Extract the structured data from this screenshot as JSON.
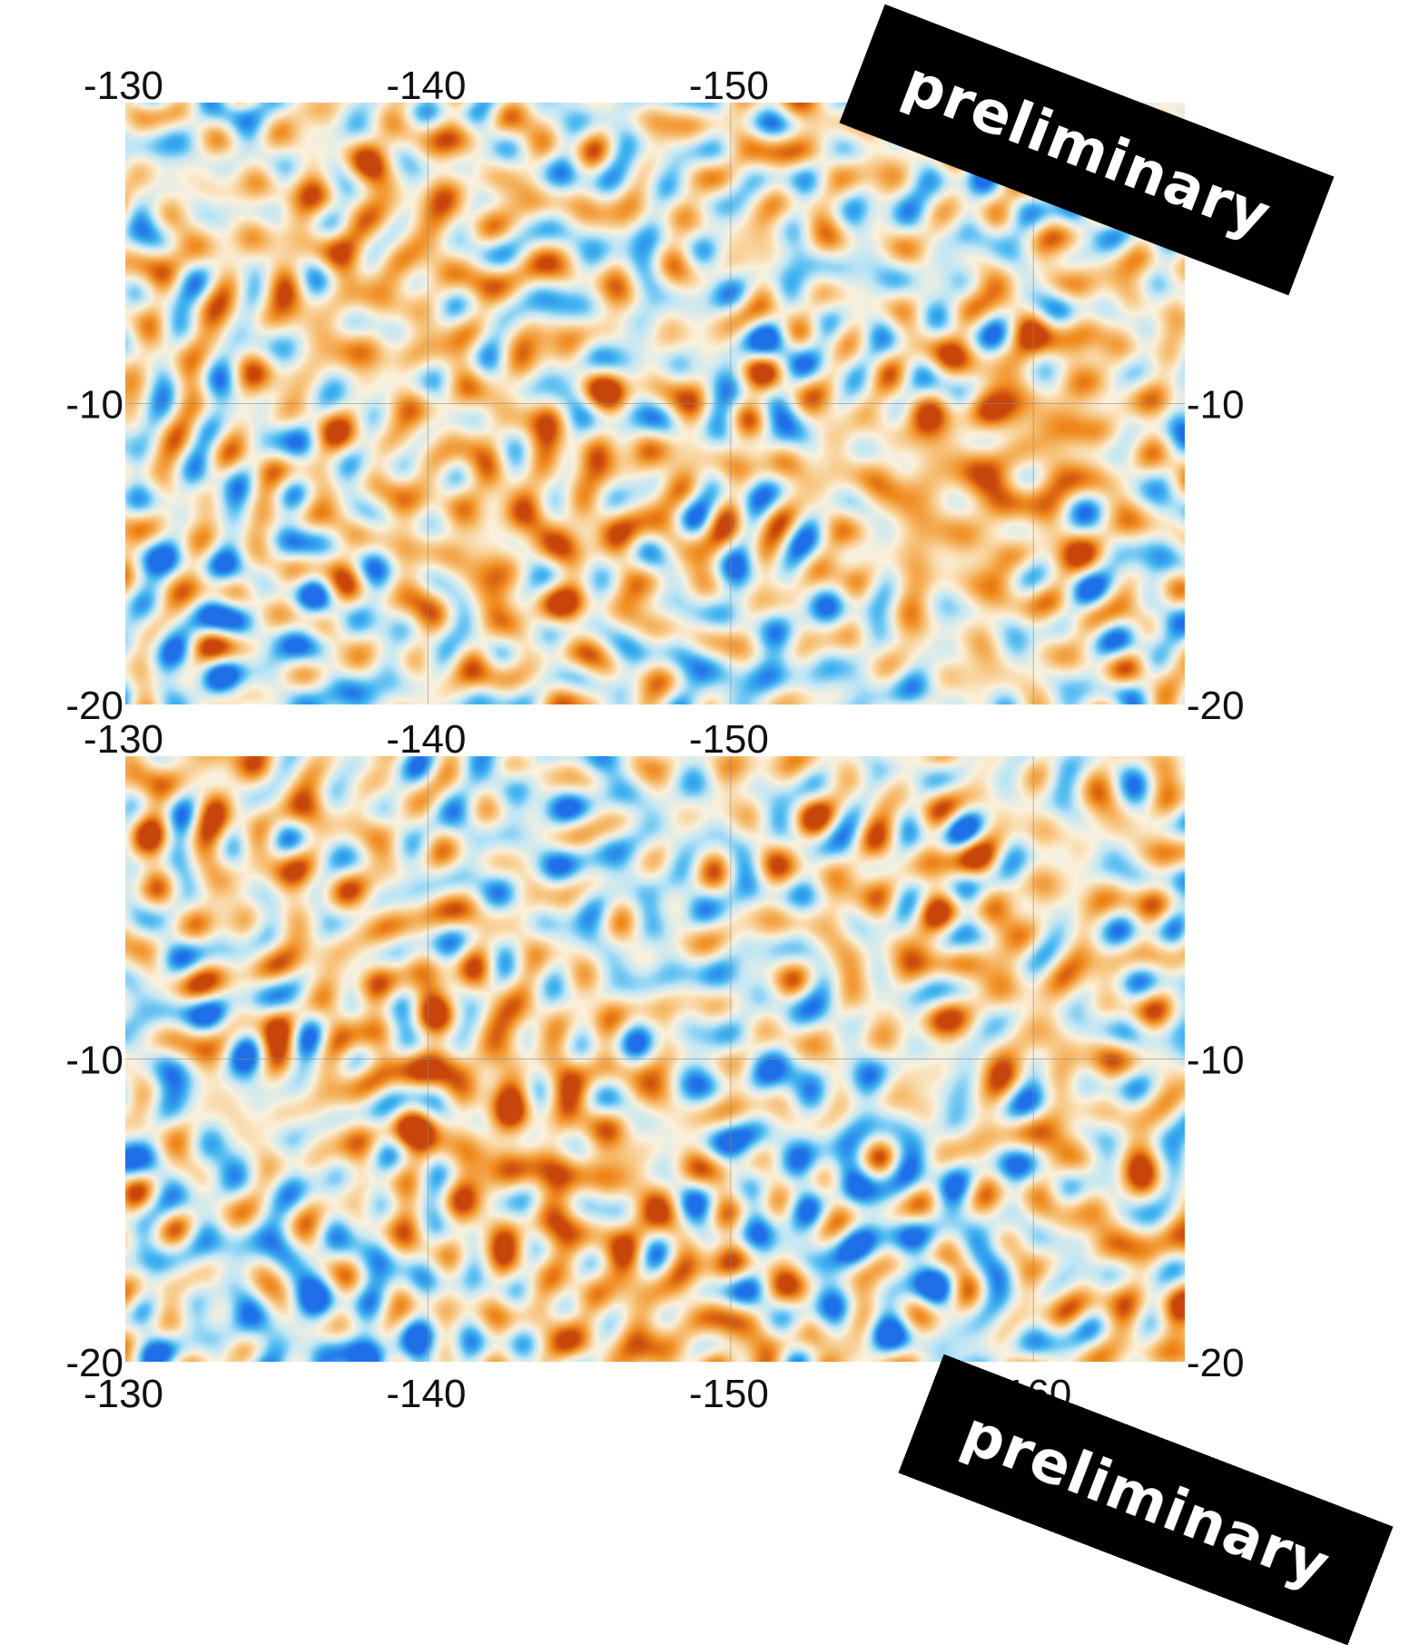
{
  "chart_data": [
    {
      "type": "heatmap",
      "title": "",
      "xlabel": "",
      "ylabel": "",
      "xlim": [
        -130,
        -165
      ],
      "ylim": [
        -20,
        0
      ],
      "x_ticks_top": [
        "-130",
        "-140",
        "-150"
      ],
      "y_ticks_left": [
        "-10",
        "-20"
      ],
      "y_ticks_right": [
        "-10",
        "-20"
      ],
      "grid": true,
      "colormap": [
        "#1f6fe8",
        "#3fb3f0",
        "#bfe6f6",
        "#fbf1dc",
        "#f7c177",
        "#f08a1c",
        "#c8460b"
      ],
      "overlay_label": "preliminary",
      "seed": 7
    },
    {
      "type": "heatmap",
      "title": "",
      "xlabel": "",
      "ylabel": "",
      "xlim": [
        -130,
        -165
      ],
      "ylim": [
        -20,
        0
      ],
      "x_ticks_top": [
        "-130",
        "-140",
        "-150"
      ],
      "x_ticks_bottom": [
        "-130",
        "-140",
        "-150",
        "-160"
      ],
      "y_ticks_left": [
        "-10",
        "-20"
      ],
      "y_ticks_right": [
        "-10",
        "-20"
      ],
      "grid": true,
      "colormap": [
        "#1f6fe8",
        "#3fb3f0",
        "#bfe6f6",
        "#fbf1dc",
        "#f7c177",
        "#f08a1c",
        "#c8460b"
      ],
      "overlay_label": "preliminary",
      "seed": 23
    }
  ]
}
